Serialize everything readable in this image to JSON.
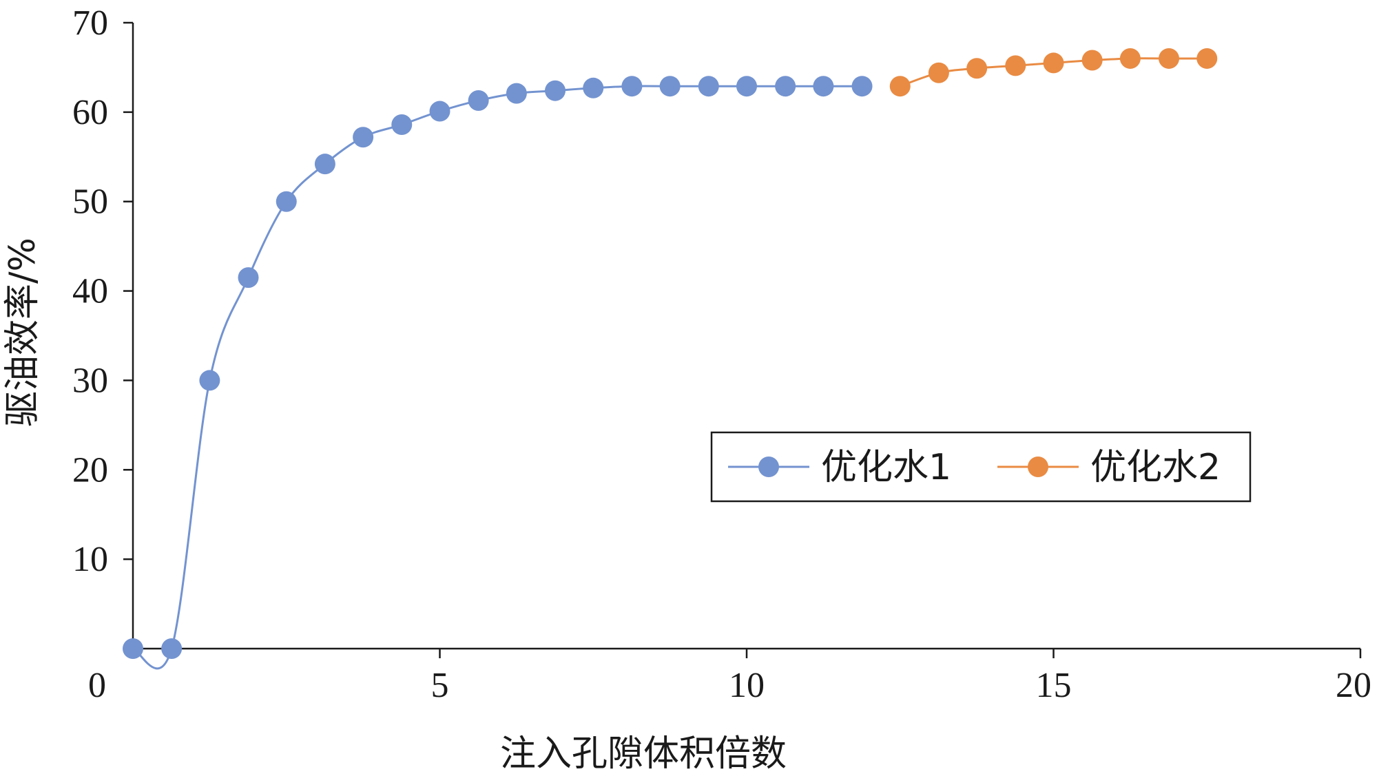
{
  "chart_data": {
    "type": "line",
    "xlabel": "注入孔隙体积倍数",
    "ylabel": "驱油效率/%",
    "xlim": [
      0,
      20
    ],
    "ylim": [
      0,
      70
    ],
    "xticks": [
      0,
      5,
      10,
      15,
      20
    ],
    "yticks": [
      10,
      20,
      30,
      40,
      50,
      60,
      70
    ],
    "grid": false,
    "smooth": true,
    "legend": {
      "placement": "center-right",
      "boxed": true
    },
    "series": [
      {
        "name": "优化水1",
        "color": "#7393D0",
        "marker": "circle",
        "x": [
          0.0,
          0.63,
          1.25,
          1.88,
          2.5,
          3.13,
          3.75,
          4.38,
          5.0,
          5.63,
          6.25,
          6.88,
          7.5,
          8.13,
          8.75,
          9.38,
          10.0,
          10.63,
          11.25,
          11.88
        ],
        "y": [
          0.0,
          0.0,
          30.0,
          41.5,
          50.0,
          54.2,
          57.2,
          58.6,
          60.1,
          61.3,
          62.1,
          62.4,
          62.7,
          62.9,
          62.9,
          62.9,
          62.9,
          62.9,
          62.9,
          62.9
        ]
      },
      {
        "name": "优化水2",
        "color": "#E98B43",
        "marker": "circle",
        "x": [
          12.5,
          13.13,
          13.75,
          14.38,
          15.0,
          15.63,
          16.25,
          16.88,
          17.5
        ],
        "y": [
          62.9,
          64.4,
          64.9,
          65.2,
          65.5,
          65.8,
          66.0,
          66.0,
          66.0
        ]
      }
    ]
  }
}
